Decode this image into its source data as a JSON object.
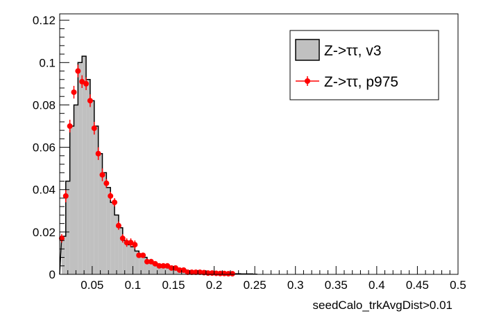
{
  "chart_data": {
    "type": "bar",
    "xlabel": "seedCalo_trkAvgDist>0.01",
    "ylabel": "",
    "xlim": [
      0.01,
      0.5
    ],
    "ylim": [
      0,
      0.123
    ],
    "bin_width": 0.005,
    "grid": false,
    "legend": "top-right",
    "x_ticks": [
      "0.05",
      "0.1",
      "0.15",
      "0.2",
      "0.25",
      "0.3",
      "0.35",
      "0.4",
      "0.45",
      "0.5"
    ],
    "x_tick_values": [
      0.05,
      0.1,
      0.15,
      0.2,
      0.25,
      0.3,
      0.35,
      0.4,
      0.45,
      0.5
    ],
    "y_ticks": [
      "0",
      "0.02",
      "0.04",
      "0.06",
      "0.08",
      "0.1",
      "0.12"
    ],
    "y_tick_values": [
      0,
      0.02,
      0.04,
      0.06,
      0.08,
      0.1,
      0.12
    ],
    "series": [
      {
        "name": "Z->ττ, v3",
        "style": "histogram",
        "fill": "#c0c0c0",
        "stroke": "#000000",
        "x": [
          0.015,
          0.02,
          0.025,
          0.03,
          0.035,
          0.04,
          0.045,
          0.05,
          0.055,
          0.06,
          0.065,
          0.07,
          0.075,
          0.08,
          0.085,
          0.09,
          0.095,
          0.1,
          0.105,
          0.11,
          0.115,
          0.12,
          0.125,
          0.13,
          0.135,
          0.14,
          0.145,
          0.15,
          0.155,
          0.16,
          0.165,
          0.17,
          0.175,
          0.18,
          0.185,
          0.19,
          0.195,
          0.2,
          0.205,
          0.21,
          0.215,
          0.22,
          0.225,
          0.23,
          0.235,
          0.24,
          0.245,
          0.25
        ],
        "values": [
          0.018,
          0.044,
          0.07,
          0.08,
          0.1,
          0.103,
          0.092,
          0.082,
          0.07,
          0.057,
          0.048,
          0.041,
          0.034,
          0.028,
          0.022,
          0.016,
          0.014,
          0.013,
          0.011,
          0.009,
          0.008,
          0.006,
          0.005,
          0.005,
          0.004,
          0.004,
          0.003,
          0.003,
          0.002,
          0.002,
          0.002,
          0.0015,
          0.001,
          0.001,
          0.001,
          0.001,
          0.0008,
          0.0007,
          0.0006,
          0.0005,
          0.0005,
          0.0004,
          0.0003,
          0.0003,
          0.0002,
          0.0002,
          0.0002,
          0.0001
        ]
      },
      {
        "name": "Z->ττ, p975",
        "style": "points",
        "color": "#ff0000",
        "x": [
          0.0125,
          0.0175,
          0.0225,
          0.0275,
          0.0325,
          0.0375,
          0.0425,
          0.0475,
          0.0525,
          0.0575,
          0.0625,
          0.0675,
          0.0725,
          0.0775,
          0.0825,
          0.0875,
          0.0925,
          0.0975,
          0.1025,
          0.1075,
          0.1125,
          0.1175,
          0.1225,
          0.1275,
          0.1325,
          0.1375,
          0.1425,
          0.1475,
          0.1525,
          0.1575,
          0.1625,
          0.1675,
          0.1725,
          0.1775,
          0.1825,
          0.1875,
          0.1925,
          0.1975,
          0.2025,
          0.2075,
          0.2125,
          0.2175,
          0.2225
        ],
        "values": [
          0.017,
          0.037,
          0.07,
          0.086,
          0.096,
          0.091,
          0.09,
          0.082,
          0.069,
          0.057,
          0.047,
          0.043,
          0.037,
          0.034,
          0.023,
          0.017,
          0.015,
          0.015,
          0.014,
          0.009,
          0.009,
          0.006,
          0.006,
          0.005,
          0.004,
          0.004,
          0.004,
          0.003,
          0.003,
          0.002,
          0.002,
          0.001,
          0.001,
          0.001,
          0.001,
          0.0008,
          0.0006,
          0.0006,
          0.0005,
          0.0004,
          0.0004,
          0.0003,
          0.0003
        ],
        "errors": [
          0.002,
          0.003,
          0.003,
          0.003,
          0.003,
          0.003,
          0.003,
          0.003,
          0.003,
          0.003,
          0.003,
          0.002,
          0.002,
          0.002,
          0.002,
          0.002,
          0.002,
          0.002,
          0.002,
          0.001,
          0.001,
          0.001,
          0.001,
          0.001,
          0.001,
          0.001,
          0.001,
          0.001,
          0.001,
          0.001,
          0.001,
          0.0005,
          0.0005,
          0.0005,
          0.0005,
          0.0005,
          0.0005,
          0.0005,
          0.0005,
          0.0005,
          0.0005,
          0.0005,
          0.0005
        ]
      }
    ]
  }
}
